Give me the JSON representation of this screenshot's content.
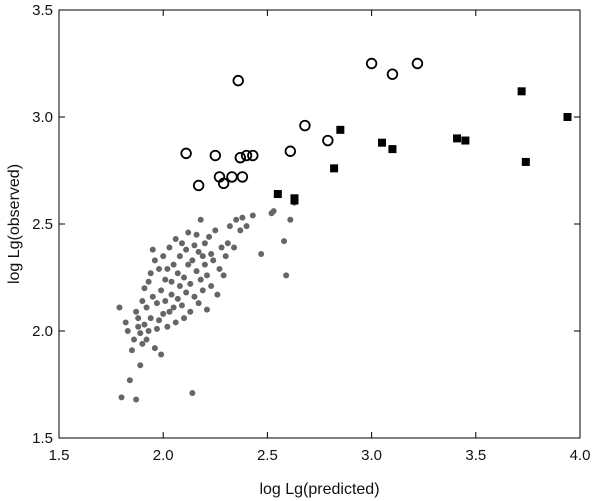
{
  "chart_data": {
    "type": "scatter",
    "xlabel": "log Lg(predicted)",
    "ylabel": "log Lg(observed)",
    "xlim": [
      1.5,
      4.0
    ],
    "ylim": [
      1.5,
      3.5
    ],
    "xticks": [
      1.5,
      2.0,
      2.5,
      3.0,
      3.5,
      4.0
    ],
    "yticks": [
      1.5,
      2.0,
      2.5,
      3.0,
      3.5
    ],
    "xtick_labels": [
      "1.5",
      "2.0",
      "2.5",
      "3.0",
      "3.5",
      "4.0"
    ],
    "ytick_labels": [
      "1.5",
      "2.0",
      "2.5",
      "3.0",
      "3.5"
    ],
    "grid": false,
    "series": [
      {
        "marker": "filled-circle",
        "color": "#666666",
        "points": [
          [
            1.79,
            2.11
          ],
          [
            1.8,
            1.69
          ],
          [
            1.82,
            2.04
          ],
          [
            1.83,
            2.0
          ],
          [
            1.84,
            1.77
          ],
          [
            1.85,
            1.91
          ],
          [
            1.86,
            1.96
          ],
          [
            1.87,
            1.68
          ],
          [
            1.87,
            2.09
          ],
          [
            1.88,
            2.02
          ],
          [
            1.88,
            2.06
          ],
          [
            1.89,
            1.99
          ],
          [
            1.89,
            1.84
          ],
          [
            1.9,
            1.94
          ],
          [
            1.9,
            2.14
          ],
          [
            1.91,
            2.2
          ],
          [
            1.91,
            2.03
          ],
          [
            1.92,
            2.11
          ],
          [
            1.92,
            1.96
          ],
          [
            1.93,
            2.23
          ],
          [
            1.93,
            2.0
          ],
          [
            1.94,
            2.27
          ],
          [
            1.94,
            2.06
          ],
          [
            1.95,
            2.38
          ],
          [
            1.95,
            2.16
          ],
          [
            1.96,
            1.92
          ],
          [
            1.96,
            2.33
          ],
          [
            1.97,
            2.01
          ],
          [
            1.97,
            2.13
          ],
          [
            1.98,
            2.29
          ],
          [
            1.98,
            2.05
          ],
          [
            1.99,
            2.19
          ],
          [
            1.99,
            1.89
          ],
          [
            2.0,
            2.35
          ],
          [
            2.0,
            2.08
          ],
          [
            2.01,
            2.24
          ],
          [
            2.01,
            2.14
          ],
          [
            2.02,
            2.02
          ],
          [
            2.02,
            2.29
          ],
          [
            2.03,
            2.09
          ],
          [
            2.03,
            2.39
          ],
          [
            2.04,
            2.23
          ],
          [
            2.04,
            2.17
          ],
          [
            2.05,
            2.11
          ],
          [
            2.05,
            2.31
          ],
          [
            2.06,
            2.43
          ],
          [
            2.06,
            2.04
          ],
          [
            2.07,
            2.27
          ],
          [
            2.07,
            2.15
          ],
          [
            2.08,
            2.35
          ],
          [
            2.08,
            2.21
          ],
          [
            2.09,
            2.41
          ],
          [
            2.09,
            2.12
          ],
          [
            2.1,
            2.25
          ],
          [
            2.1,
            2.06
          ],
          [
            2.11,
            2.38
          ],
          [
            2.11,
            2.18
          ],
          [
            2.12,
            2.31
          ],
          [
            2.12,
            2.46
          ],
          [
            2.13,
            2.09
          ],
          [
            2.13,
            2.22
          ],
          [
            2.14,
            2.33
          ],
          [
            2.14,
            1.71
          ],
          [
            2.15,
            2.4
          ],
          [
            2.15,
            2.16
          ],
          [
            2.16,
            2.28
          ],
          [
            2.16,
            2.45
          ],
          [
            2.17,
            2.37
          ],
          [
            2.17,
            2.13
          ],
          [
            2.18,
            2.24
          ],
          [
            2.18,
            2.52
          ],
          [
            2.19,
            2.35
          ],
          [
            2.19,
            2.19
          ],
          [
            2.2,
            2.41
          ],
          [
            2.2,
            2.31
          ],
          [
            2.21,
            2.1
          ],
          [
            2.21,
            2.26
          ],
          [
            2.22,
            2.44
          ],
          [
            2.23,
            2.21
          ],
          [
            2.23,
            2.36
          ],
          [
            2.24,
            2.33
          ],
          [
            2.25,
            2.47
          ],
          [
            2.26,
            2.17
          ],
          [
            2.27,
            2.29
          ],
          [
            2.28,
            2.39
          ],
          [
            2.29,
            2.26
          ],
          [
            2.3,
            2.35
          ],
          [
            2.31,
            2.41
          ],
          [
            2.32,
            2.49
          ],
          [
            2.34,
            2.39
          ],
          [
            2.35,
            2.52
          ],
          [
            2.37,
            2.47
          ],
          [
            2.38,
            2.53
          ],
          [
            2.4,
            2.49
          ],
          [
            2.43,
            2.54
          ],
          [
            2.47,
            2.36
          ],
          [
            2.52,
            2.55
          ],
          [
            2.53,
            2.56
          ],
          [
            2.58,
            2.42
          ],
          [
            2.59,
            2.26
          ],
          [
            2.61,
            2.52
          ],
          [
            2.63,
            2.6
          ]
        ]
      },
      {
        "marker": "open-circle",
        "color": "#000000",
        "points": [
          [
            2.11,
            2.83
          ],
          [
            2.17,
            2.68
          ],
          [
            2.25,
            2.82
          ],
          [
            2.27,
            2.72
          ],
          [
            2.29,
            2.69
          ],
          [
            2.33,
            2.72
          ],
          [
            2.36,
            3.17
          ],
          [
            2.37,
            2.81
          ],
          [
            2.38,
            2.72
          ],
          [
            2.4,
            2.82
          ],
          [
            2.43,
            2.82
          ],
          [
            2.61,
            2.84
          ],
          [
            2.68,
            2.96
          ],
          [
            2.79,
            2.89
          ],
          [
            3.0,
            3.25
          ],
          [
            3.1,
            3.2
          ],
          [
            3.22,
            3.25
          ]
        ]
      },
      {
        "marker": "filled-square",
        "color": "#000000",
        "points": [
          [
            2.55,
            2.64
          ],
          [
            2.63,
            2.61
          ],
          [
            2.63,
            2.62
          ],
          [
            2.82,
            2.76
          ],
          [
            2.85,
            2.94
          ],
          [
            3.05,
            2.88
          ],
          [
            3.1,
            2.85
          ],
          [
            3.41,
            2.9
          ],
          [
            3.45,
            2.89
          ],
          [
            3.72,
            3.12
          ],
          [
            3.74,
            2.79
          ],
          [
            3.94,
            3.0
          ]
        ]
      }
    ]
  }
}
